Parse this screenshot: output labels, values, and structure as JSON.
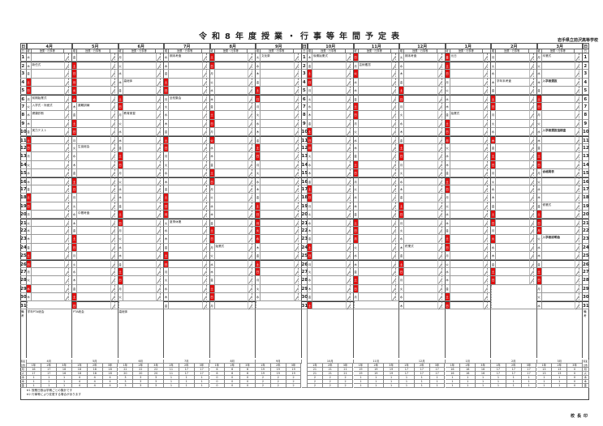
{
  "title": "令和8年度授業・行事等年間予定表",
  "school": "岩手県立前沢高等学校",
  "headers": {
    "day": "日",
    "weekday": "曜",
    "events": "授業・行事等",
    "remarks": "備考",
    "summary": "授業日数"
  },
  "colors": {
    "holiday": "#e01010",
    "line": "#555555"
  },
  "months": [
    {
      "label": "4月",
      "weekdays": "水木金土日月火水木金土日月火水木金土日月火水木金土日月火水木",
      "holidays": [
        29
      ],
      "events": [
        {
          "day": 2,
          "text": "新任式"
        },
        {
          "day": 6,
          "text": "前期始業式"
        },
        {
          "day": 7,
          "text": "入学式・対面式"
        },
        {
          "day": 8,
          "text": "健康診断"
        },
        {
          "day": 10,
          "text": "実力テスト"
        }
      ],
      "remarks": "学年PTA総会",
      "summary": [
        [
          "16",
          "17",
          "16"
        ],
        [
          "17",
          "17",
          "16"
        ],
        [
          "1",
          "1",
          "1"
        ],
        [
          "1",
          "1",
          "1"
        ],
        [
          "1",
          "1",
          "1"
        ]
      ]
    },
    {
      "label": "5月",
      "weekdays": "金土日月火水木金土日月火水木金土日月火水木金土日月火水木金土日",
      "holidays": [
        3,
        4,
        5,
        6
      ],
      "events": [
        {
          "day": 7,
          "text": "避難訓練"
        },
        {
          "day": 12,
          "text": "生徒総会"
        },
        {
          "day": 20,
          "text": "中間考査"
        }
      ],
      "remarks": "PTA総会",
      "summary": [
        [
          "18",
          "18",
          "18"
        ],
        [
          "18",
          "18",
          "18"
        ],
        [
          "4",
          "4",
          "4"
        ],
        [
          "4",
          "4",
          "4"
        ],
        [
          "4",
          "4",
          "4"
        ]
      ]
    },
    {
      "label": "6月",
      "weekdays": "月火水木金土日月火水木金土日月火水木金土日月火水木金土日月火",
      "holidays": [],
      "events": [
        {
          "day": 4,
          "text": "高総体"
        },
        {
          "day": 8,
          "text": "教育実習"
        }
      ],
      "remarks": "高総体",
      "summary": [
        [
          "22",
          "22",
          "22"
        ],
        [
          "20",
          "20",
          "20"
        ],
        [
          "3",
          "3",
          "3"
        ],
        [
          "3",
          "3",
          "3"
        ],
        [
          "3",
          "3",
          "3"
        ]
      ]
    },
    {
      "label": "7月",
      "weekdays": "水木金土日月火水木金土日月火水木金土日月火水木金土日月火水木金",
      "holidays": [
        20
      ],
      "events": [
        {
          "day": 1,
          "text": "期末考査"
        },
        {
          "day": 6,
          "text": "全校集会"
        },
        {
          "day": 21,
          "text": "夏季休業"
        }
      ],
      "remarks": "",
      "summary": [
        [
          "11",
          "17",
          "17"
        ],
        [
          "11",
          "17",
          "17"
        ],
        [
          "1",
          "1",
          "1"
        ],
        [
          "1",
          "1",
          "1"
        ],
        [
          "1",
          "1",
          "1"
        ]
      ]
    },
    {
      "label": "8月",
      "weekdays": "土日月火水木金土日月火水木金土日月火水木金土日月火水木金土日月",
      "holidays": [
        11
      ],
      "events": [
        {
          "day": 24,
          "text": "始業式"
        }
      ],
      "remarks": "",
      "summary": [
        [
          "6",
          "6",
          "6"
        ],
        [
          "6",
          "6",
          "6"
        ],
        [
          "0",
          "0",
          "0"
        ],
        [
          "0",
          "0",
          "0"
        ],
        [
          "0",
          "0",
          "0"
        ]
      ]
    },
    {
      "label": "9月",
      "weekdays": "火水木金土日月火水木金土日月火水木金土日月火水木金土日月火水",
      "holidays": [
        21,
        22,
        23
      ],
      "events": [
        {
          "day": 1,
          "text": "文化祭"
        }
      ],
      "remarks": "",
      "summary": [
        [
          "19",
          "19",
          "19"
        ],
        [
          "19",
          "19",
          "19"
        ],
        [
          "2",
          "2",
          "2"
        ],
        [
          "2",
          "2",
          "2"
        ],
        [
          "2",
          "2",
          "2"
        ]
      ]
    },
    {
      "label": "10月",
      "weekdays": "木金土日月火水木金土日月火水木金土日月火水木金土日月火水木金土",
      "holidays": [
        12
      ],
      "events": [
        {
          "day": 1,
          "text": "後期始業式"
        }
      ],
      "remarks": "",
      "summary": [
        [
          "21",
          "21",
          "21"
        ],
        [
          "21",
          "21",
          "21"
        ],
        [
          "2",
          "2",
          "2"
        ],
        [
          "2",
          "2",
          "2"
        ],
        [
          "2",
          "2",
          "2"
        ]
      ]
    },
    {
      "label": "11月",
      "weekdays": "日月火水木金土日月火水木金土日月火水木金土日月火水木金土日月",
      "holidays": [
        3,
        23
      ],
      "events": [
        {
          "day": 2,
          "text": "芸術鑑賞"
        }
      ],
      "remarks": "",
      "summary": [
        [
          "19",
          "19",
          "19"
        ],
        [
          "19",
          "19",
          "19"
        ],
        [
          "1",
          "1",
          "1"
        ],
        [
          "1",
          "1",
          "1"
        ],
        [
          "1",
          "1",
          "1"
        ]
      ]
    },
    {
      "label": "12月",
      "weekdays": "火水木金土日月火水木金土日月火水木金土日月火水木金土日月火水木",
      "holidays": [],
      "events": [
        {
          "day": 1,
          "text": "期末考査"
        },
        {
          "day": 24,
          "text": "終業式"
        }
      ],
      "remarks": "",
      "summary": [
        [
          "17",
          "17",
          "17"
        ],
        [
          "17",
          "17",
          "17"
        ],
        [
          "1",
          "1",
          "1"
        ],
        [
          "1",
          "1",
          "1"
        ],
        [
          "1",
          "1",
          "1"
        ]
      ]
    },
    {
      "label": "1月",
      "weekdays": "金土日月火水木金土日月火水木金土日月火水木金土日月火水木金土日",
      "holidays": [
        1,
        11
      ],
      "events": [
        {
          "day": 1,
          "text": "元日"
        },
        {
          "day": 8,
          "text": "始業式"
        }
      ],
      "remarks": "",
      "summary": [
        [
          "16",
          "16",
          "16"
        ],
        [
          "16",
          "16",
          "16"
        ],
        [
          "1",
          "1",
          "1"
        ],
        [
          "1",
          "1",
          "1"
        ],
        [
          "1",
          "1",
          "1"
        ]
      ]
    },
    {
      "label": "2月",
      "weekdays": "月火水木金土日月火水木金土日月火水木金土日月火水木金土日",
      "holidays": [
        11,
        23
      ],
      "events": [
        {
          "day": 4,
          "text": "学年末考査"
        }
      ],
      "remarks": "",
      "summary": [
        [
          "17",
          "17",
          "17"
        ],
        [
          "17",
          "17",
          "17"
        ],
        [
          "1",
          "1",
          "1"
        ],
        [
          "1",
          "1",
          "1"
        ],
        [
          "1",
          "1",
          "1"
        ]
      ]
    },
    {
      "label": "3月",
      "weekdays": "月火水木金土日月火水木金土日月火水木金土日月火水木金土日月火水",
      "holidays": [
        22
      ],
      "events": [
        {
          "day": 1,
          "text": "卒業式"
        },
        {
          "day": 4,
          "text": "入学者選抜",
          "bold": true
        },
        {
          "day": 10,
          "text": "入学者選抜追検査",
          "bold": true
        },
        {
          "day": 15,
          "text": "合格発表",
          "bold": true
        },
        {
          "day": 19,
          "text": "修業式"
        },
        {
          "day": 23,
          "text": "入学者説明会",
          "bold": true
        }
      ],
      "remarks": "",
      "summary": [
        [
          "13",
          "13",
          "0"
        ],
        [
          "13",
          "13",
          "0"
        ],
        [
          "1",
          "1",
          "0"
        ],
        [
          "1",
          "1",
          "0"
        ],
        [
          "1",
          "1",
          "0"
        ]
      ]
    }
  ],
  "summary_cols": [
    "1年",
    "2年",
    "3年"
  ],
  "summary_rows": [
    "月",
    "火",
    "水",
    "木",
    "金"
  ],
  "notes": [
    "※1 授業日数は学期ごとの集計です",
    "※2 行事等により変更する場合があります"
  ],
  "seal": "校長印"
}
